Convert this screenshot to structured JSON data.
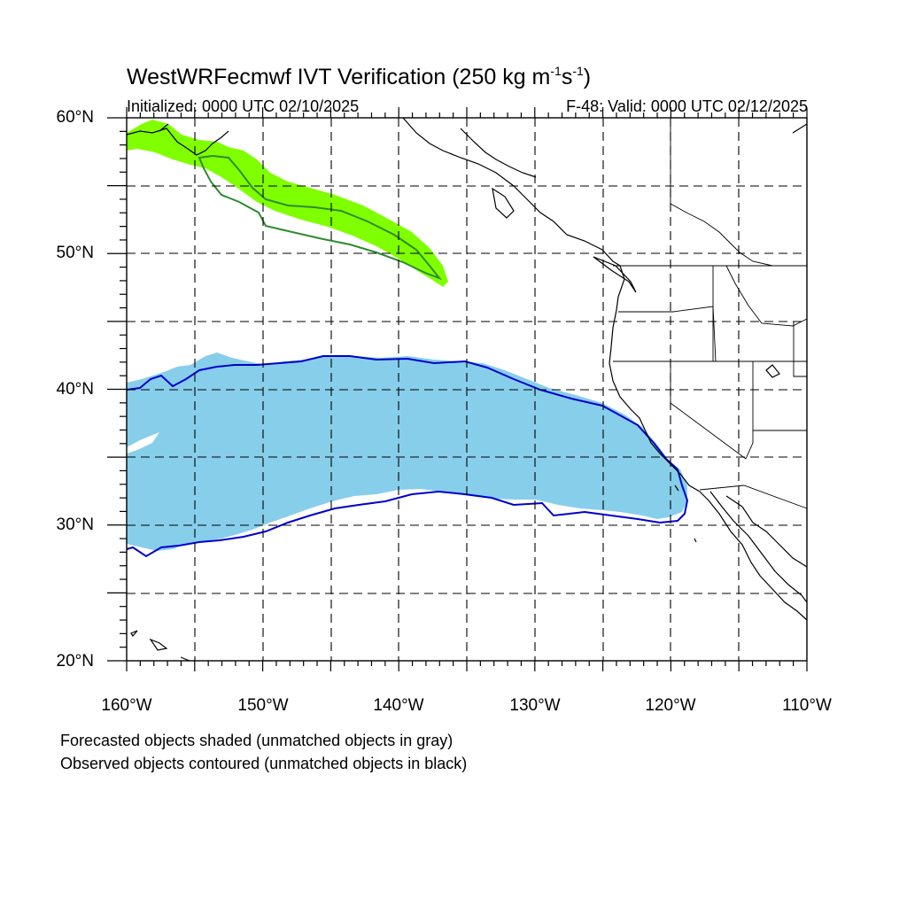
{
  "title": {
    "main": "WestWRFecmwf IVT Verification (250 kg m",
    "exp1": "-1",
    "mid": "s",
    "exp2": "-1",
    "close": ")"
  },
  "initialized": "Initialized: 0000 UTC 02/10/2025",
  "valid": "F-48: Valid: 0000 UTC 02/12/2025",
  "lat_labels": [
    "60°N",
    "50°N",
    "40°N",
    "30°N",
    "20°N"
  ],
  "lon_labels": [
    "160°W",
    "150°W",
    "140°W",
    "130°W",
    "120°W",
    "110°W"
  ],
  "captions": [
    "Forecasted objects shaded (unmatched objects in gray)",
    "Observed objects contoured (unmatched objects in black)"
  ],
  "map": {
    "lon_range": [
      -160,
      -110
    ],
    "lat_range": [
      20,
      60
    ],
    "colors": {
      "forecast_object_1": "#7fff00",
      "observed_object_1": "#2e8b2e",
      "forecast_object_2": "#87ceeb",
      "observed_object_2": "#0000cd",
      "coastline": "#000000",
      "grid": "#000000"
    }
  }
}
